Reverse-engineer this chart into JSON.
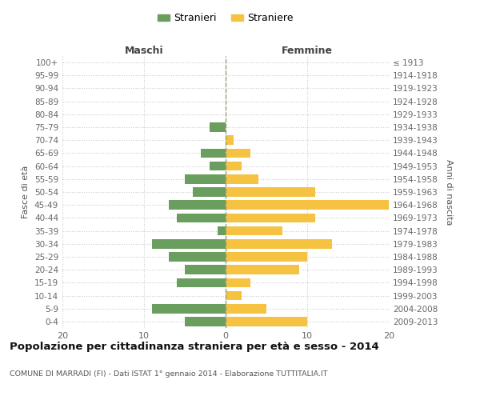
{
  "age_groups": [
    "0-4",
    "5-9",
    "10-14",
    "15-19",
    "20-24",
    "25-29",
    "30-34",
    "35-39",
    "40-44",
    "45-49",
    "50-54",
    "55-59",
    "60-64",
    "65-69",
    "70-74",
    "75-79",
    "80-84",
    "85-89",
    "90-94",
    "95-99",
    "100+"
  ],
  "birth_years": [
    "2009-2013",
    "2004-2008",
    "1999-2003",
    "1994-1998",
    "1989-1993",
    "1984-1988",
    "1979-1983",
    "1974-1978",
    "1969-1973",
    "1964-1968",
    "1959-1963",
    "1954-1958",
    "1949-1953",
    "1944-1948",
    "1939-1943",
    "1934-1938",
    "1929-1933",
    "1924-1928",
    "1919-1923",
    "1914-1918",
    "≤ 1913"
  ],
  "males": [
    5,
    9,
    0,
    6,
    5,
    7,
    9,
    1,
    6,
    7,
    4,
    5,
    2,
    3,
    0,
    2,
    0,
    0,
    0,
    0,
    0
  ],
  "females": [
    10,
    5,
    2,
    3,
    9,
    10,
    13,
    7,
    11,
    20,
    11,
    4,
    2,
    3,
    1,
    0,
    0,
    0,
    0,
    0,
    0
  ],
  "male_color": "#6a9e5e",
  "female_color": "#f5c242",
  "title": "Popolazione per cittadinanza straniera per età e sesso - 2014",
  "subtitle": "COMUNE DI MARRADI (FI) - Dati ISTAT 1° gennaio 2014 - Elaborazione TUTTITALIA.IT",
  "legend_male": "Stranieri",
  "legend_female": "Straniere",
  "xlabel_left": "Maschi",
  "xlabel_right": "Femmine",
  "ylabel_left": "Fasce di età",
  "ylabel_right": "Anni di nascita",
  "xlim": 20,
  "background_color": "#ffffff",
  "grid_color": "#cccccc"
}
